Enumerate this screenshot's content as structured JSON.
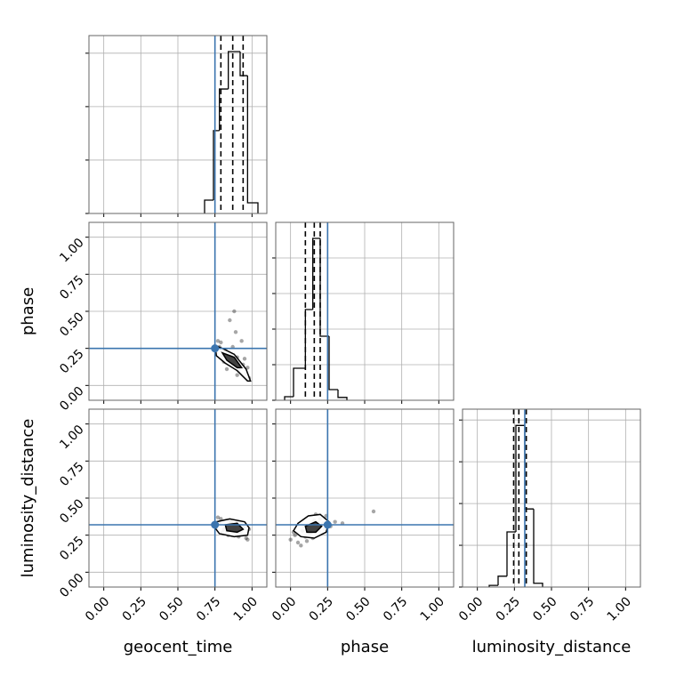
{
  "chart_data": [
    {
      "type": "histogram",
      "bins": [
        0.68,
        0.74,
        0.78,
        0.84,
        0.92,
        0.97,
        1.04
      ],
      "counts": [
        0.25,
        1.55,
        2.33,
        3.03,
        2.58,
        0.2
      ],
      "color": "#000000",
      "quantiles": [
        0.79,
        0.87,
        0.94
      ],
      "truth": 0.75,
      "truth_color": "#3b75af",
      "xlim": [
        -0.1,
        1.1
      ],
      "xticks": [
        0,
        0.25,
        0.5,
        0.75,
        1
      ],
      "ylim": [
        0,
        3.33
      ],
      "yticks": [
        0,
        1,
        2,
        3
      ],
      "grid": true
    },
    {
      "type": "scatter",
      "ylabel": "phase",
      "color": "#000000",
      "truth_color": "#3b75af",
      "truth": [
        0.75,
        0.25
      ],
      "x": [
        0.76,
        0.78,
        0.8,
        0.82,
        0.84,
        0.86,
        0.88,
        0.9,
        0.92,
        0.94,
        0.96,
        0.98,
        0.79,
        0.83,
        0.87,
        0.91,
        0.95,
        0.85,
        0.89,
        0.93,
        0.77,
        0.97,
        0.88,
        0.81,
        0.9
      ],
      "y": [
        0.22,
        0.26,
        0.2,
        0.24,
        0.17,
        0.21,
        0.15,
        0.19,
        0.12,
        0.14,
        0.08,
        0.05,
        0.29,
        0.11,
        0.26,
        0.1,
        0.18,
        0.44,
        0.36,
        0.3,
        0.3,
        0.12,
        0.5,
        0.16,
        0.07
      ],
      "contours": [
        {
          "x": [
            0.75,
            0.8,
            0.88,
            0.96,
            0.99,
            0.97,
            0.9,
            0.82,
            0.76
          ],
          "y": [
            0.27,
            0.25,
            0.21,
            0.11,
            0.03,
            0.03,
            0.1,
            0.15,
            0.2
          ]
        },
        {
          "x": [
            0.8,
            0.88,
            0.93,
            0.9,
            0.83
          ],
          "y": [
            0.22,
            0.19,
            0.12,
            0.12,
            0.17
          ]
        }
      ],
      "xlim": [
        -0.1,
        1.1
      ],
      "xticks": [
        0,
        0.25,
        0.5,
        0.75,
        1
      ],
      "ylim": [
        -0.1,
        1.1
      ],
      "yticks": [
        {
          "value": 0,
          "label": "0.00"
        },
        {
          "value": 0.25,
          "label": "0.25"
        },
        {
          "value": 0.5,
          "label": "0.50"
        },
        {
          "value": 0.75,
          "label": "0.75"
        },
        {
          "value": 1,
          "label": "1.00"
        }
      ],
      "grid": true
    },
    {
      "type": "histogram",
      "bins": [
        -0.04,
        0.02,
        0.1,
        0.15,
        0.2,
        0.26,
        0.32,
        0.38
      ],
      "counts": [
        0.1,
        0.9,
        2.55,
        4.55,
        1.8,
        0.3,
        0.08
      ],
      "color": "#000000",
      "quantiles": [
        0.1,
        0.16,
        0.2
      ],
      "truth": 0.25,
      "truth_color": "#3b75af",
      "xlim": [
        -0.1,
        1.1
      ],
      "xticks": [
        0,
        0.25,
        0.5,
        0.75,
        1
      ],
      "ylim": [
        0,
        5
      ],
      "yticks": [
        0,
        1,
        2,
        3,
        4
      ],
      "grid": true
    },
    {
      "type": "scatter",
      "xlabel": "geocent_time",
      "ylabel": "luminosity_distance",
      "color": "#000000",
      "truth_color": "#3b75af",
      "truth": [
        0.75,
        0.32
      ],
      "x": [
        0.76,
        0.78,
        0.8,
        0.82,
        0.84,
        0.86,
        0.88,
        0.9,
        0.92,
        0.94,
        0.96,
        0.98,
        0.79,
        0.83,
        0.87,
        0.91,
        0.95,
        0.85,
        0.89,
        0.93,
        0.77,
        0.97,
        0.88,
        0.81,
        0.9
      ],
      "y": [
        0.3,
        0.33,
        0.27,
        0.31,
        0.25,
        0.34,
        0.28,
        0.32,
        0.26,
        0.3,
        0.23,
        0.29,
        0.36,
        0.27,
        0.33,
        0.24,
        0.31,
        0.35,
        0.26,
        0.28,
        0.37,
        0.22,
        0.3,
        0.29,
        0.33
      ],
      "contours": [
        {
          "x": [
            0.76,
            0.85,
            0.95,
            0.98,
            0.97,
            0.88,
            0.78,
            0.75
          ],
          "y": [
            0.34,
            0.36,
            0.34,
            0.3,
            0.25,
            0.24,
            0.26,
            0.3
          ]
        },
        {
          "x": [
            0.82,
            0.9,
            0.94,
            0.9,
            0.83
          ],
          "y": [
            0.32,
            0.33,
            0.29,
            0.27,
            0.28
          ]
        }
      ],
      "xlim": [
        -0.1,
        1.1
      ],
      "xticks": [
        {
          "value": 0,
          "label": "0.00"
        },
        {
          "value": 0.25,
          "label": "0.25"
        },
        {
          "value": 0.5,
          "label": "0.50"
        },
        {
          "value": 0.75,
          "label": "0.75"
        },
        {
          "value": 1,
          "label": "1.00"
        }
      ],
      "ylim": [
        -0.1,
        1.1
      ],
      "yticks": [
        {
          "value": 0,
          "label": "0.00"
        },
        {
          "value": 0.25,
          "label": "0.25"
        },
        {
          "value": 0.5,
          "label": "0.50"
        },
        {
          "value": 0.75,
          "label": "0.75"
        },
        {
          "value": 1,
          "label": "1.00"
        }
      ],
      "grid": true
    },
    {
      "type": "scatter",
      "xlabel": "phase",
      "color": "#000000",
      "truth_color": "#3b75af",
      "truth": [
        0.25,
        0.32
      ],
      "x": [
        0.0,
        0.03,
        0.05,
        0.08,
        0.1,
        0.12,
        0.14,
        0.16,
        0.18,
        0.2,
        0.22,
        0.24,
        0.27,
        0.3,
        0.07,
        0.11,
        0.15,
        0.19,
        0.23,
        0.02,
        0.09,
        0.17,
        0.13,
        0.35,
        0.56
      ],
      "y": [
        0.22,
        0.25,
        0.2,
        0.28,
        0.24,
        0.32,
        0.27,
        0.35,
        0.3,
        0.36,
        0.33,
        0.38,
        0.31,
        0.34,
        0.18,
        0.21,
        0.23,
        0.28,
        0.29,
        0.27,
        0.31,
        0.39,
        0.26,
        0.33,
        0.41
      ],
      "contours": [
        {
          "x": [
            0.05,
            0.12,
            0.2,
            0.26,
            0.24,
            0.16,
            0.07,
            0.02
          ],
          "y": [
            0.33,
            0.38,
            0.39,
            0.34,
            0.27,
            0.23,
            0.24,
            0.28
          ]
        },
        {
          "x": [
            0.1,
            0.17,
            0.21,
            0.17,
            0.11
          ],
          "y": [
            0.31,
            0.34,
            0.31,
            0.27,
            0.27
          ]
        }
      ],
      "xlim": [
        -0.1,
        1.1
      ],
      "xticks": [
        {
          "value": 0,
          "label": "0.00"
        },
        {
          "value": 0.25,
          "label": "0.25"
        },
        {
          "value": 0.5,
          "label": "0.50"
        },
        {
          "value": 0.75,
          "label": "0.75"
        },
        {
          "value": 1,
          "label": "1.00"
        }
      ],
      "ylim": [
        -0.1,
        1.1
      ],
      "yticks": [
        0,
        0.25,
        0.5,
        0.75,
        1
      ],
      "grid": true
    },
    {
      "type": "histogram",
      "xlabel": "luminosity_distance",
      "bins": [
        0.08,
        0.14,
        0.2,
        0.26,
        0.32,
        0.38,
        0.44
      ],
      "counts": [
        0.04,
        0.26,
        1.32,
        3.87,
        1.87,
        0.09
      ],
      "color": "#000000",
      "quantiles": [
        0.245,
        0.28,
        0.33
      ],
      "truth": 0.32,
      "truth_color": "#3b75af",
      "xlim": [
        -0.1,
        1.1
      ],
      "xticks": [
        {
          "value": 0,
          "label": "0.00"
        },
        {
          "value": 0.25,
          "label": "0.25"
        },
        {
          "value": 0.5,
          "label": "0.50"
        },
        {
          "value": 0.75,
          "label": "0.75"
        },
        {
          "value": 1,
          "label": "1.00"
        }
      ],
      "ylim": [
        0,
        4.26
      ],
      "yticks": [
        0,
        1,
        2,
        3,
        4
      ],
      "grid": true
    }
  ]
}
